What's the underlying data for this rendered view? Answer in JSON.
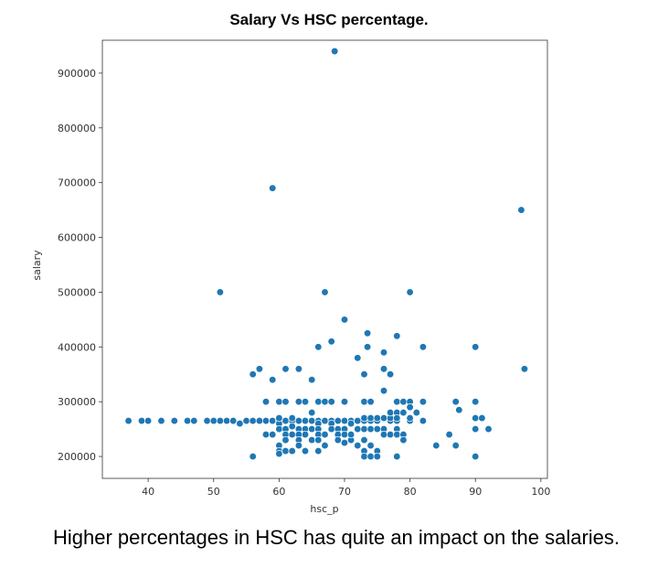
{
  "title": "Salary Vs HSC percentage.",
  "caption": "Higher percentages in HSC has quite an impact on the salaries.",
  "colors": {
    "point": "#1f77b4",
    "point_edge": "#ffffff",
    "axes": "#333333"
  },
  "chart_data": {
    "type": "scatter",
    "title": "Salary Vs HSC percentage.",
    "xlabel": "hsc_p",
    "ylabel": "salary",
    "xlim": [
      33,
      101
    ],
    "ylim": [
      160000,
      960000
    ],
    "xticks": [
      40,
      50,
      60,
      70,
      80,
      90,
      100
    ],
    "yticks": [
      200000,
      300000,
      400000,
      500000,
      600000,
      700000,
      800000,
      900000
    ],
    "xtick_labels": [
      "40",
      "50",
      "60",
      "70",
      "80",
      "90",
      "100"
    ],
    "ytick_labels": [
      "200000",
      "300000",
      "400000",
      "500000",
      "600000",
      "700000",
      "800000",
      "900000"
    ],
    "grid": false,
    "points": [
      [
        37,
        265000
      ],
      [
        39,
        265000
      ],
      [
        40,
        265000
      ],
      [
        42,
        265000
      ],
      [
        44,
        265000
      ],
      [
        46,
        265000
      ],
      [
        47,
        265000
      ],
      [
        49,
        265000
      ],
      [
        50,
        265000
      ],
      [
        51,
        265000
      ],
      [
        52,
        265000
      ],
      [
        53,
        265000
      ],
      [
        54,
        260000
      ],
      [
        55,
        265000
      ],
      [
        56,
        265000
      ],
      [
        57,
        265000
      ],
      [
        58,
        265000
      ],
      [
        59,
        265000
      ],
      [
        60,
        265000
      ],
      [
        60,
        260000
      ],
      [
        61,
        265000
      ],
      [
        62,
        265000
      ],
      [
        63,
        265000
      ],
      [
        64,
        265000
      ],
      [
        65,
        265000
      ],
      [
        66,
        265000
      ],
      [
        67,
        265000
      ],
      [
        68,
        265000
      ],
      [
        69,
        265000
      ],
      [
        70,
        265000
      ],
      [
        71,
        265000
      ],
      [
        72,
        265000
      ],
      [
        73,
        265000
      ],
      [
        74,
        265000
      ],
      [
        75,
        265000
      ],
      [
        77,
        265000
      ],
      [
        78,
        265000
      ],
      [
        80,
        265000
      ],
      [
        82,
        265000
      ],
      [
        56,
        200000
      ],
      [
        56,
        350000
      ],
      [
        57,
        360000
      ],
      [
        58,
        300000
      ],
      [
        58,
        240000
      ],
      [
        59,
        340000
      ],
      [
        59,
        240000
      ],
      [
        60,
        300000
      ],
      [
        60,
        270000
      ],
      [
        60,
        250000
      ],
      [
        60,
        220000
      ],
      [
        60,
        210000
      ],
      [
        60,
        205000
      ],
      [
        61,
        360000
      ],
      [
        61,
        300000
      ],
      [
        61,
        250000
      ],
      [
        61,
        240000
      ],
      [
        61,
        230000
      ],
      [
        61,
        210000
      ],
      [
        62,
        255000
      ],
      [
        62,
        240000
      ],
      [
        62,
        210000
      ],
      [
        62,
        270000
      ],
      [
        63,
        360000
      ],
      [
        63,
        300000
      ],
      [
        63,
        250000
      ],
      [
        63,
        240000
      ],
      [
        63,
        230000
      ],
      [
        63,
        220000
      ],
      [
        64,
        300000
      ],
      [
        64,
        250000
      ],
      [
        64,
        240000
      ],
      [
        64,
        210000
      ],
      [
        65,
        340000
      ],
      [
        65,
        280000
      ],
      [
        65,
        250000
      ],
      [
        65,
        230000
      ],
      [
        66,
        400000
      ],
      [
        66,
        300000
      ],
      [
        66,
        260000
      ],
      [
        66,
        250000
      ],
      [
        66,
        240000
      ],
      [
        66,
        230000
      ],
      [
        66,
        210000
      ],
      [
        67,
        500000
      ],
      [
        67,
        300000
      ],
      [
        67,
        240000
      ],
      [
        67,
        220000
      ],
      [
        68,
        410000
      ],
      [
        68,
        300000
      ],
      [
        68,
        260000
      ],
      [
        68,
        250000
      ],
      [
        69,
        250000
      ],
      [
        69,
        240000
      ],
      [
        69,
        230000
      ],
      [
        70,
        450000
      ],
      [
        70,
        300000
      ],
      [
        70,
        250000
      ],
      [
        70,
        240000
      ],
      [
        70,
        225000
      ],
      [
        71,
        260000
      ],
      [
        71,
        230000
      ],
      [
        71,
        240000
      ],
      [
        72,
        380000
      ],
      [
        72,
        250000
      ],
      [
        72,
        220000
      ],
      [
        73,
        350000
      ],
      [
        73,
        300000
      ],
      [
        73,
        270000
      ],
      [
        73,
        250000
      ],
      [
        73,
        230000
      ],
      [
        73,
        210000
      ],
      [
        73,
        200000
      ],
      [
        73.5,
        425000
      ],
      [
        73.5,
        400000
      ],
      [
        74,
        300000
      ],
      [
        74,
        270000
      ],
      [
        74,
        220000
      ],
      [
        74,
        200000
      ],
      [
        74,
        250000
      ],
      [
        75,
        210000
      ],
      [
        75,
        250000
      ],
      [
        75,
        200000
      ],
      [
        75,
        270000
      ],
      [
        76,
        390000
      ],
      [
        76,
        360000
      ],
      [
        76,
        320000
      ],
      [
        76,
        270000
      ],
      [
        76,
        250000
      ],
      [
        76,
        240000
      ],
      [
        77,
        350000
      ],
      [
        77,
        270000
      ],
      [
        77,
        280000
      ],
      [
        77,
        240000
      ],
      [
        78,
        420000
      ],
      [
        78,
        300000
      ],
      [
        78,
        280000
      ],
      [
        78,
        270000
      ],
      [
        78,
        250000
      ],
      [
        78,
        240000
      ],
      [
        78,
        200000
      ],
      [
        79,
        300000
      ],
      [
        79,
        280000
      ],
      [
        79,
        240000
      ],
      [
        79,
        230000
      ],
      [
        80,
        500000
      ],
      [
        80,
        300000
      ],
      [
        80,
        290000
      ],
      [
        80,
        270000
      ],
      [
        81,
        280000
      ],
      [
        82,
        400000
      ],
      [
        82,
        300000
      ],
      [
        84,
        220000
      ],
      [
        86,
        240000
      ],
      [
        87,
        300000
      ],
      [
        87,
        220000
      ],
      [
        87.5,
        285000
      ],
      [
        90,
        400000
      ],
      [
        90,
        300000
      ],
      [
        90,
        270000
      ],
      [
        90,
        250000
      ],
      [
        90,
        200000
      ],
      [
        91,
        270000
      ],
      [
        92,
        250000
      ],
      [
        51,
        500000
      ],
      [
        59,
        690000
      ],
      [
        68.5,
        940000
      ],
      [
        97,
        650000
      ],
      [
        97.5,
        360000
      ]
    ]
  }
}
